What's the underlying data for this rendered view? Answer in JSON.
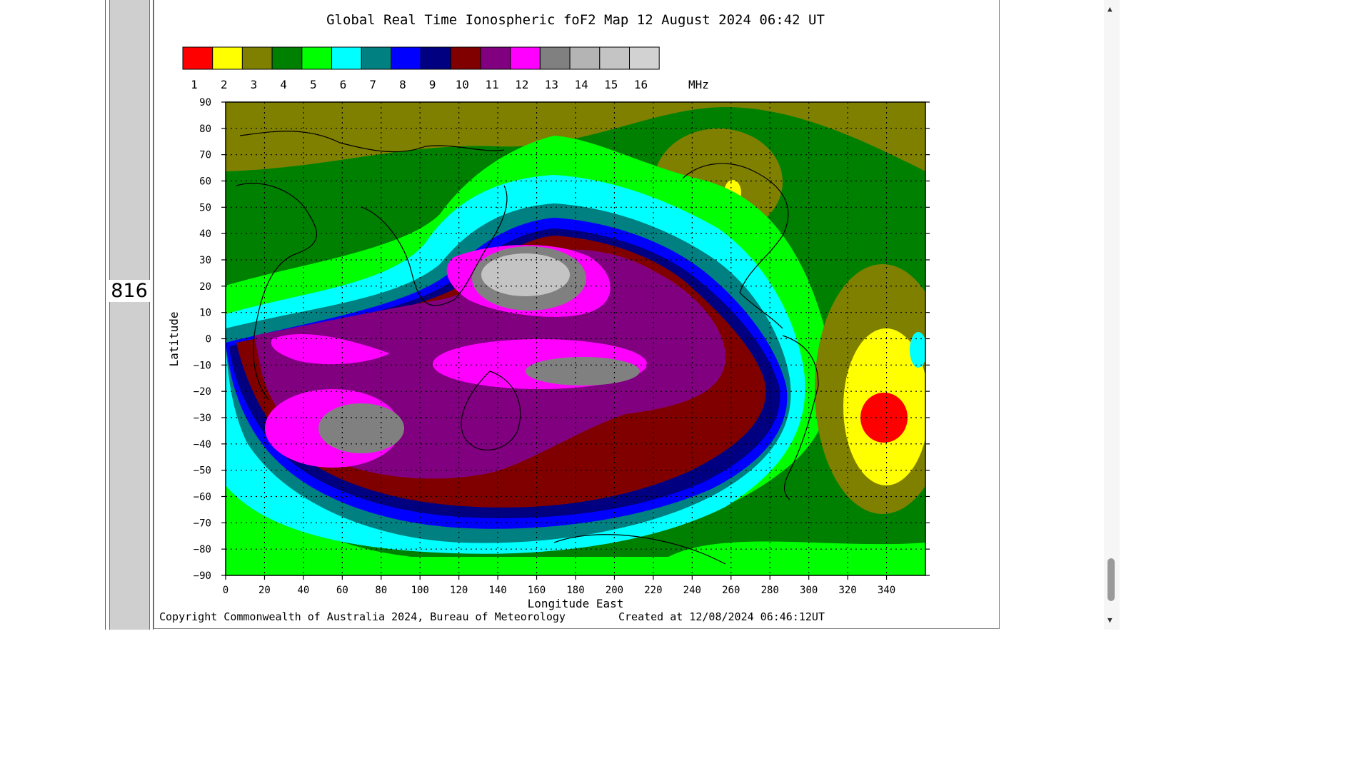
{
  "line_number": "816",
  "map": {
    "title": "Global Real Time Ionospheric foF2 Map  12 August 2024 06:42 UT",
    "colorbar": {
      "labels": [
        "1",
        "2",
        "3",
        "4",
        "5",
        "6",
        "7",
        "8",
        "9",
        "10",
        "11",
        "12",
        "13",
        "14",
        "15",
        "16"
      ],
      "unit": "MHz",
      "colors": [
        "#ff0000",
        "#ffff00",
        "#808000",
        "#008000",
        "#00ff00",
        "#00ffff",
        "#008080",
        "#0000ff",
        "#000080",
        "#800000",
        "#800080",
        "#ff00ff",
        "#808080",
        "#b4b4b4",
        "#c4c4c4",
        "#d2d2d2"
      ]
    },
    "y_axis": {
      "label": "Latitude",
      "ticks": [
        "90",
        "80",
        "70",
        "60",
        "50",
        "40",
        "30",
        "20",
        "10",
        "0",
        "−10",
        "−20",
        "−30",
        "−40",
        "−50",
        "−60",
        "−70",
        "−80",
        "−90"
      ]
    },
    "x_axis": {
      "label": "Longitude East",
      "ticks": [
        "0",
        "20",
        "40",
        "60",
        "80",
        "100",
        "120",
        "140",
        "160",
        "180",
        "200",
        "220",
        "240",
        "260",
        "280",
        "300",
        "320",
        "340"
      ]
    },
    "copyright": "Copyright Commonwealth of Australia 2024, Bureau of Meteorology",
    "created": "Created at 12/08/2024 06:46:12UT"
  }
}
